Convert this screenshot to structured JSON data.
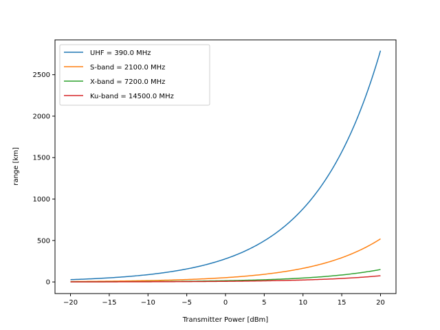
{
  "chart_data": {
    "type": "line",
    "xlabel": "Transmitter Power [dBm]",
    "ylabel": "range [km]",
    "xlim": [
      -22,
      22
    ],
    "ylim": [
      -140,
      2920
    ],
    "xticks": [
      -20,
      -15,
      -10,
      -5,
      0,
      5,
      10,
      15,
      20
    ],
    "yticks": [
      0,
      500,
      1000,
      1500,
      2000,
      2500
    ],
    "grid": false,
    "legend_position": "upper-left",
    "x_range": [
      -20,
      20
    ],
    "series": [
      {
        "name": "UHF = 390.0 MHz",
        "color": "#1f77b4",
        "value_at_0_dBm": 279,
        "value_at_20_dBm": 2790
      },
      {
        "name": "S-band = 2100.0 MHz",
        "color": "#ff7f0e",
        "value_at_0_dBm": 52,
        "value_at_20_dBm": 518
      },
      {
        "name": "X-band = 7200.0 MHz",
        "color": "#2ca02c",
        "value_at_0_dBm": 15,
        "value_at_20_dBm": 151
      },
      {
        "name": "Ku-band = 14500.0 MHz",
        "color": "#d62728",
        "value_at_0_dBm": 7.5,
        "value_at_20_dBm": 75
      }
    ]
  }
}
